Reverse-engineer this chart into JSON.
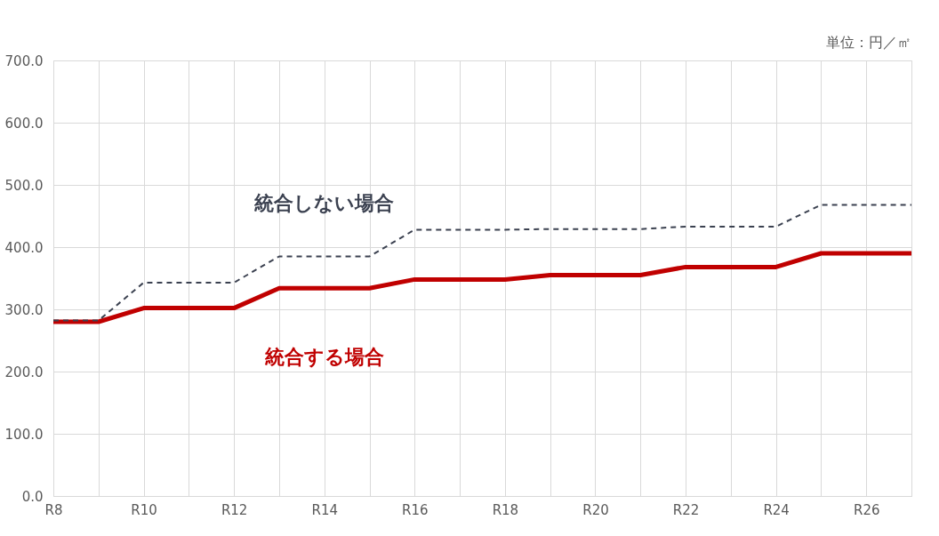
{
  "chart_data": {
    "type": "line",
    "categories": [
      "R8",
      null,
      "R10",
      null,
      "R12",
      null,
      "R14",
      null,
      "R16",
      null,
      "R18",
      null,
      "R20",
      null,
      "R22",
      null,
      "R24",
      null,
      "R26",
      null
    ],
    "series": [
      {
        "name": "統合しない場合",
        "color": "#3b4150",
        "line_style": "dashed",
        "values": [
          282,
          282,
          343,
          343,
          343,
          385,
          385,
          385,
          428,
          428,
          428,
          429,
          429,
          429,
          433,
          433,
          433,
          468,
          468,
          468
        ]
      },
      {
        "name": "統合する場合",
        "color": "#c00000",
        "line_style": "solid",
        "values": [
          280,
          280,
          302,
          302,
          302,
          334,
          334,
          334,
          348,
          348,
          348,
          355,
          355,
          355,
          368,
          368,
          368,
          390,
          390,
          390
        ]
      }
    ],
    "ylim": [
      0,
      700
    ],
    "yticks": [
      {
        "value": 0,
        "label": "0.0"
      },
      {
        "value": 100,
        "label": "100.0"
      },
      {
        "value": 200,
        "label": "200.0"
      },
      {
        "value": 300,
        "label": "300.0"
      },
      {
        "value": 400,
        "label": "400.0"
      },
      {
        "value": 500,
        "label": "500.0"
      },
      {
        "value": 600,
        "label": "600.0"
      },
      {
        "value": 700,
        "label": "700.0"
      }
    ],
    "grid": true,
    "marker": "none",
    "annotations": [
      "単位：円／㎡"
    ]
  }
}
